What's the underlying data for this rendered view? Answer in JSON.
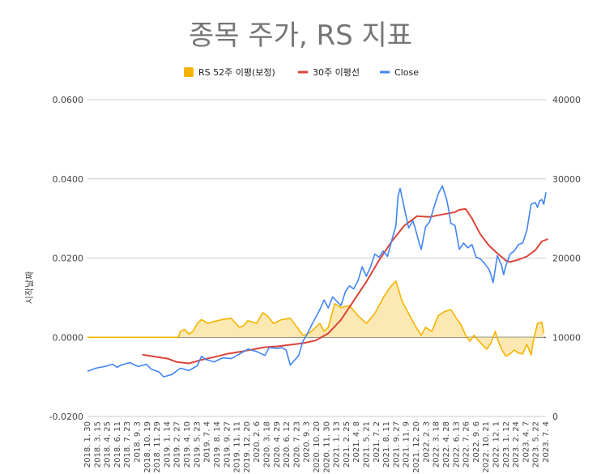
{
  "chart_data": {
    "type": "line",
    "title": "종목 주가, RS 지표",
    "ylabel": "시작날짜",
    "left_axis": {
      "range": [
        -0.02,
        0.06
      ],
      "ticks": [
        "-0.0200",
        "0.0000",
        "0.0200",
        "0.0400",
        "0.0600"
      ]
    },
    "right_axis": {
      "range": [
        0,
        40000
      ],
      "ticks": [
        "0",
        "10000",
        "20000",
        "30000",
        "40000"
      ]
    },
    "grid": true,
    "legend_position": "top",
    "x_tick_labels": [
      "2018. 1. 30",
      "2018. 3. 15",
      "2018. 4. 25",
      "2018. 6. 11",
      "2018. 7. 23",
      "2018. 9. 3",
      "2018. 10. 19",
      "2018. 11. 29",
      "2019. 1. 14",
      "2019. 2. 27",
      "2019. 4. 10",
      "2019. 5. 23",
      "2019. 7. 4",
      "2019. 8. 14",
      "2019. 9. 27",
      "2019. 11. 11",
      "2019. 12. 20",
      "2020. 2. 6",
      "2020. 3. 18",
      "2020. 4. 29",
      "2020. 6. 12",
      "2020. 7. 23",
      "2020. 9. 3",
      "2020. 10. 20",
      "2020. 11. 30",
      "2021. 1. 13",
      "2021. 2. 25",
      "2021. 4. 8",
      "2021. 5. 21",
      "2021. 7. 2",
      "2021. 8. 11",
      "2021. 9. 27",
      "2021. 11. 9",
      "2021. 12. 20",
      "2022. 2. 3",
      "2022. 3. 18",
      "2022. 4. 28",
      "2022. 6. 13",
      "2022. 7. 26",
      "2022. 9. 6",
      "2022. 10. 21",
      "2022. 12. 1",
      "2023. 1. 12",
      "2023. 2. 24",
      "2023. 4. 7",
      "2023. 5. 22",
      "2023. 7. 4"
    ],
    "series": [
      {
        "name": "RS 52주 이평(보정)",
        "axis": "left",
        "style": "area",
        "color": "#f4b400",
        "fill": "#fce8b2",
        "points": [
          [
            0,
            0
          ],
          [
            0.215,
            0
          ],
          [
            0.22,
            0.0015
          ],
          [
            0.23,
            0.002
          ],
          [
            0.24,
            0.0008
          ],
          [
            0.25,
            0.0015
          ],
          [
            0.26,
            0.0035
          ],
          [
            0.27,
            0.0045
          ],
          [
            0.285,
            0.0035
          ],
          [
            0.3,
            0.004
          ],
          [
            0.32,
            0.0045
          ],
          [
            0.34,
            0.0048
          ],
          [
            0.36,
            0.0025
          ],
          [
            0.37,
            0.003
          ],
          [
            0.38,
            0.0042
          ],
          [
            0.4,
            0.0035
          ],
          [
            0.415,
            0.0062
          ],
          [
            0.425,
            0.0055
          ],
          [
            0.44,
            0.0035
          ],
          [
            0.46,
            0.0045
          ],
          [
            0.48,
            0.0048
          ],
          [
            0.5,
            0.002
          ],
          [
            0.51,
            0.0005
          ],
          [
            0.52,
            0.0008
          ],
          [
            0.53,
            0.0015
          ],
          [
            0.55,
            0.0035
          ],
          [
            0.56,
            0.0015
          ],
          [
            0.57,
            0.0025
          ],
          [
            0.585,
            0.0085
          ],
          [
            0.6,
            0.0075
          ],
          [
            0.62,
            0.008
          ],
          [
            0.64,
            0.0055
          ],
          [
            0.66,
            0.0035
          ],
          [
            0.68,
            0.006
          ],
          [
            0.7,
            0.01
          ],
          [
            0.715,
            0.0125
          ],
          [
            0.73,
            0.0142
          ],
          [
            0.745,
            0.009
          ],
          [
            0.76,
            0.006
          ],
          [
            0.775,
            0.003
          ],
          [
            0.79,
            0.0005
          ],
          [
            0.8,
            0.0025
          ],
          [
            0.815,
            0.0015
          ],
          [
            0.83,
            0.0055
          ],
          [
            0.845,
            0.0065
          ],
          [
            0.86,
            0.007
          ],
          [
            0.875,
            0.0045
          ],
          [
            0.885,
            0.003
          ],
          [
            0.895,
            0.0005
          ],
          [
            0.905,
            -0.001
          ],
          [
            0.915,
            0.0005
          ],
          [
            0.925,
            -0.0008
          ],
          [
            0.935,
            -0.002
          ],
          [
            0.945,
            -0.003
          ],
          [
            0.955,
            -0.0015
          ],
          [
            0.965,
            0.0015
          ],
          [
            0.972,
            -0.001
          ],
          [
            0.98,
            -0.003
          ],
          [
            0.99,
            -0.0048
          ],
          [
            1.0,
            -0.0042
          ],
          [
            1.01,
            -0.0032
          ],
          [
            1.02,
            -0.004
          ],
          [
            1.03,
            -0.0042
          ],
          [
            1.04,
            -0.0018
          ],
          [
            1.05,
            -0.0045
          ],
          [
            1.055,
            -0.001
          ],
          [
            1.065,
            0.0035
          ],
          [
            1.075,
            0.0038
          ],
          [
            1.08,
            0.001
          ]
        ]
      },
      {
        "name": "30주 이평선",
        "axis": "right",
        "style": "line",
        "color": "#db4437",
        "points": [
          [
            0.13,
            7800
          ],
          [
            0.16,
            7550
          ],
          [
            0.19,
            7300
          ],
          [
            0.21,
            6900
          ],
          [
            0.24,
            6700
          ],
          [
            0.27,
            7150
          ],
          [
            0.3,
            7500
          ],
          [
            0.33,
            7900
          ],
          [
            0.36,
            8150
          ],
          [
            0.39,
            8450
          ],
          [
            0.42,
            8750
          ],
          [
            0.45,
            8850
          ],
          [
            0.48,
            9050
          ],
          [
            0.51,
            9250
          ],
          [
            0.54,
            9600
          ],
          [
            0.57,
            10500
          ],
          [
            0.6,
            12200
          ],
          [
            0.63,
            14600
          ],
          [
            0.66,
            17000
          ],
          [
            0.69,
            19700
          ],
          [
            0.72,
            22100
          ],
          [
            0.75,
            24100
          ],
          [
            0.78,
            25300
          ],
          [
            0.81,
            25200
          ],
          [
            0.84,
            25500
          ],
          [
            0.87,
            25800
          ],
          [
            0.88,
            26100
          ],
          [
            0.895,
            26200
          ],
          [
            0.91,
            25000
          ],
          [
            0.93,
            23000
          ],
          [
            0.95,
            21600
          ],
          [
            0.97,
            20600
          ],
          [
            0.99,
            19700
          ],
          [
            1.0,
            19500
          ],
          [
            1.02,
            19800
          ],
          [
            1.04,
            20200
          ],
          [
            1.06,
            21000
          ],
          [
            1.075,
            22100
          ],
          [
            1.09,
            22400
          ]
        ]
      },
      {
        "name": "Close",
        "axis": "right",
        "style": "line",
        "color": "#4285f4",
        "points": [
          [
            0,
            5700
          ],
          [
            0.02,
            6100
          ],
          [
            0.04,
            6300
          ],
          [
            0.06,
            6600
          ],
          [
            0.07,
            6200
          ],
          [
            0.08,
            6500
          ],
          [
            0.1,
            6800
          ],
          [
            0.12,
            6300
          ],
          [
            0.14,
            6600
          ],
          [
            0.15,
            6000
          ],
          [
            0.17,
            5600
          ],
          [
            0.18,
            5000
          ],
          [
            0.2,
            5300
          ],
          [
            0.22,
            6100
          ],
          [
            0.24,
            5800
          ],
          [
            0.26,
            6400
          ],
          [
            0.27,
            7600
          ],
          [
            0.28,
            7200
          ],
          [
            0.3,
            6900
          ],
          [
            0.32,
            7400
          ],
          [
            0.34,
            7300
          ],
          [
            0.36,
            7900
          ],
          [
            0.38,
            8500
          ],
          [
            0.4,
            8200
          ],
          [
            0.42,
            7700
          ],
          [
            0.43,
            8700
          ],
          [
            0.45,
            8600
          ],
          [
            0.46,
            8700
          ],
          [
            0.47,
            8400
          ],
          [
            0.48,
            6500
          ],
          [
            0.5,
            7700
          ],
          [
            0.51,
            9500
          ],
          [
            0.52,
            10400
          ],
          [
            0.53,
            11500
          ],
          [
            0.55,
            13500
          ],
          [
            0.56,
            14700
          ],
          [
            0.57,
            13700
          ],
          [
            0.58,
            15100
          ],
          [
            0.6,
            14000
          ],
          [
            0.61,
            15700
          ],
          [
            0.62,
            16500
          ],
          [
            0.63,
            16100
          ],
          [
            0.64,
            17100
          ],
          [
            0.65,
            18900
          ],
          [
            0.66,
            17700
          ],
          [
            0.67,
            18900
          ],
          [
            0.68,
            20500
          ],
          [
            0.69,
            20100
          ],
          [
            0.7,
            20900
          ],
          [
            0.71,
            20200
          ],
          [
            0.72,
            22200
          ],
          [
            0.73,
            24100
          ],
          [
            0.735,
            27800
          ],
          [
            0.74,
            28800
          ],
          [
            0.75,
            26300
          ],
          [
            0.76,
            23800
          ],
          [
            0.77,
            24700
          ],
          [
            0.775,
            23900
          ],
          [
            0.785,
            21900
          ],
          [
            0.79,
            21100
          ],
          [
            0.8,
            23900
          ],
          [
            0.81,
            24600
          ],
          [
            0.82,
            26400
          ],
          [
            0.83,
            28100
          ],
          [
            0.84,
            29100
          ],
          [
            0.85,
            27400
          ],
          [
            0.855,
            26100
          ],
          [
            0.86,
            24400
          ],
          [
            0.87,
            24100
          ],
          [
            0.88,
            21100
          ],
          [
            0.89,
            21900
          ],
          [
            0.9,
            21300
          ],
          [
            0.91,
            21700
          ],
          [
            0.92,
            20100
          ],
          [
            0.93,
            19900
          ],
          [
            0.94,
            19300
          ],
          [
            0.95,
            18600
          ],
          [
            0.955,
            17900
          ],
          [
            0.96,
            16900
          ],
          [
            0.97,
            20300
          ],
          [
            0.98,
            19100
          ],
          [
            0.985,
            17900
          ],
          [
            0.99,
            19000
          ],
          [
            1.0,
            20500
          ],
          [
            1.01,
            20900
          ],
          [
            1.02,
            21700
          ],
          [
            1.03,
            21900
          ],
          [
            1.04,
            23500
          ],
          [
            1.05,
            26800
          ],
          [
            1.06,
            27000
          ],
          [
            1.065,
            26400
          ],
          [
            1.07,
            27200
          ],
          [
            1.075,
            27400
          ],
          [
            1.08,
            26800
          ],
          [
            1.085,
            28300
          ]
        ]
      }
    ]
  },
  "colors": {
    "rs_line": "#f4b400",
    "rs_fill": "#fce8b2",
    "ma_line": "#db4437",
    "close_line": "#4285f4"
  }
}
